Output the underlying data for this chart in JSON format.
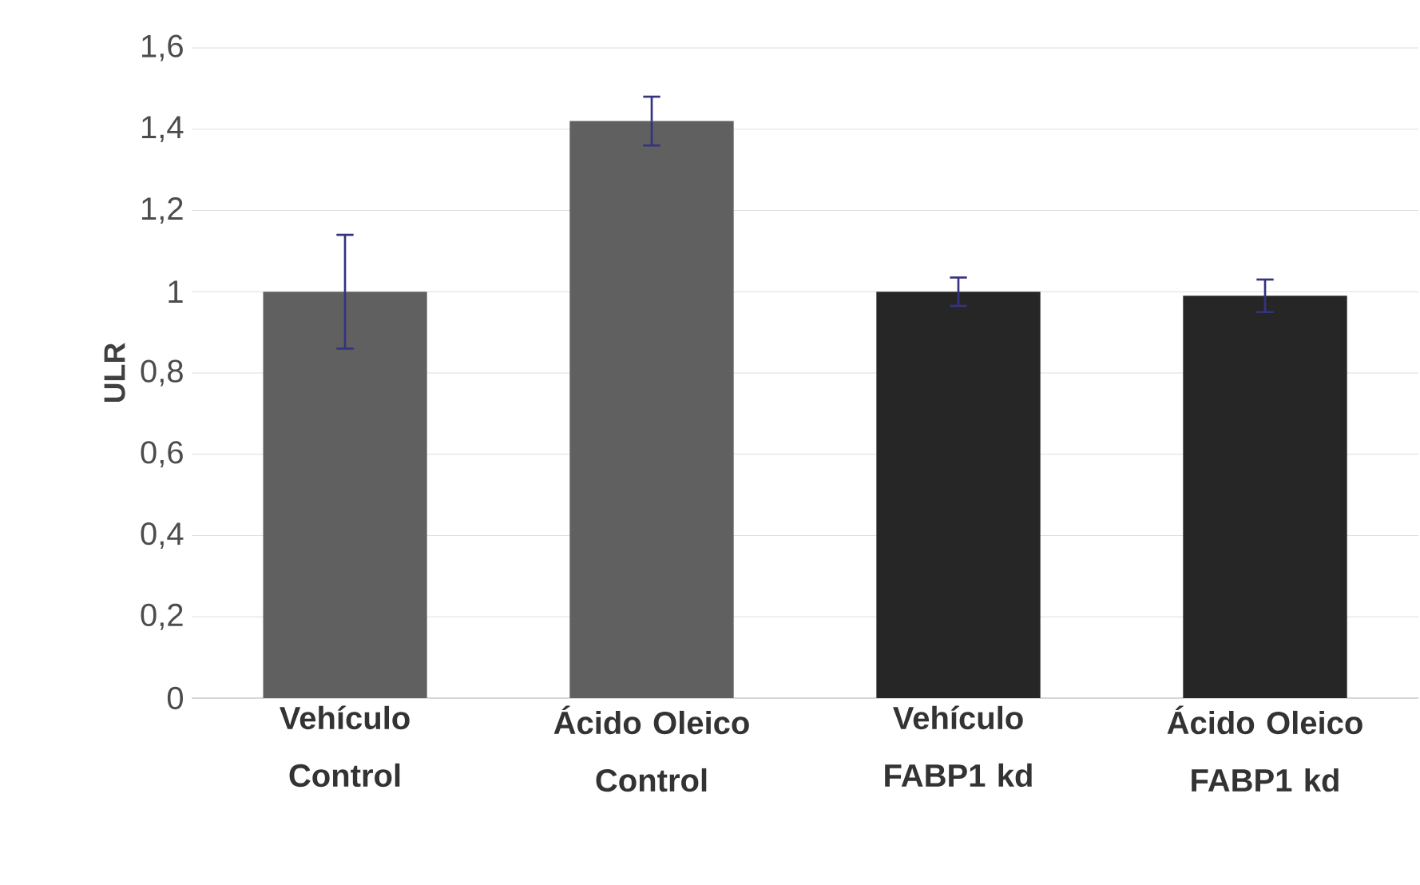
{
  "chart_data": {
    "type": "bar",
    "ylabel": "ULR",
    "categories": [
      "Vehículo Control",
      "Ácido Oleico Control",
      "Vehículo FABP1 kd",
      "Ácido Oleico FABP1 kd"
    ],
    "values": [
      1.0,
      1.42,
      1.0,
      0.99
    ],
    "colors": [
      "#606060",
      "#606060",
      "#262626",
      "#262626"
    ],
    "errors": [
      0.14,
      0.06,
      0.035,
      0.04
    ],
    "ylim": [
      0,
      1.6
    ],
    "yticks": [
      0,
      {
        "value": 0.2,
        "label": "0,2"
      },
      {
        "value": 0.4,
        "label": "0,4"
      },
      {
        "value": 0.6,
        "label": "0,6"
      },
      {
        "value": 0.8,
        "label": "0,8"
      },
      1,
      {
        "value": 1.2,
        "label": "1,2"
      },
      {
        "value": 1.4,
        "label": "1,4"
      },
      {
        "value": 1.6,
        "label": "1,6"
      }
    ],
    "grid": "y"
  }
}
